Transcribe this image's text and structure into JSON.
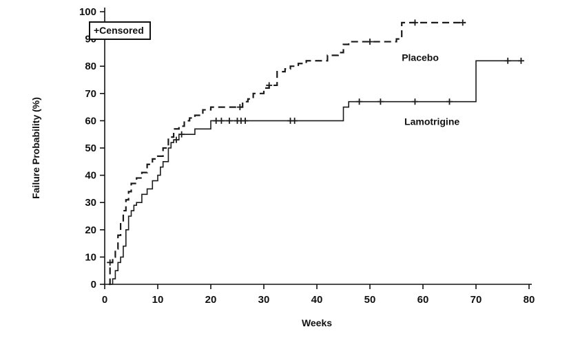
{
  "chart_data": {
    "type": "line",
    "subtype": "kaplan-meier-step",
    "title": "",
    "xlabel": "Weeks",
    "ylabel": "Failure Probability (%)",
    "xlim": [
      0,
      80
    ],
    "ylim": [
      0,
      100
    ],
    "x_ticks": [
      0,
      10,
      20,
      30,
      40,
      50,
      60,
      70,
      80
    ],
    "y_ticks": [
      0,
      10,
      20,
      30,
      40,
      50,
      60,
      70,
      80,
      90,
      100
    ],
    "grid": false,
    "legend": {
      "label": "+Censored",
      "position": "top-left"
    },
    "axis_color": "#111111",
    "series": [
      {
        "name": "Placebo",
        "style": "dashed",
        "color": "#1a1a1a",
        "label_pos": [
          56,
          82
        ],
        "points": [
          [
            0.8,
            0
          ],
          [
            1,
            8
          ],
          [
            1.5,
            10
          ],
          [
            2,
            13
          ],
          [
            2.5,
            18
          ],
          [
            3,
            23
          ],
          [
            3.5,
            27
          ],
          [
            4,
            31
          ],
          [
            4.5,
            34
          ],
          [
            5,
            37
          ],
          [
            6,
            39
          ],
          [
            7,
            41
          ],
          [
            8,
            44
          ],
          [
            9,
            46
          ],
          [
            10,
            47
          ],
          [
            11,
            50
          ],
          [
            12,
            54
          ],
          [
            13,
            57
          ],
          [
            14,
            58
          ],
          [
            15,
            60
          ],
          [
            16,
            61
          ],
          [
            17,
            62
          ],
          [
            18.5,
            64
          ],
          [
            20,
            65
          ],
          [
            26,
            67
          ],
          [
            27,
            68
          ],
          [
            28,
            70
          ],
          [
            30,
            72
          ],
          [
            31,
            73
          ],
          [
            32.5,
            78
          ],
          [
            34,
            79
          ],
          [
            35,
            80
          ],
          [
            36.5,
            81
          ],
          [
            38,
            82
          ],
          [
            42,
            84
          ],
          [
            44,
            85
          ],
          [
            45,
            88
          ],
          [
            46,
            89
          ],
          [
            55,
            90
          ],
          [
            56,
            96
          ],
          [
            68,
            96
          ]
        ],
        "censored": [
          [
            1,
            8
          ],
          [
            25.5,
            65
          ],
          [
            31,
            73
          ],
          [
            50,
            89
          ],
          [
            58.5,
            96
          ],
          [
            67.5,
            96
          ]
        ]
      },
      {
        "name": "Lamotrigine",
        "style": "solid",
        "color": "#1a1a1a",
        "label_pos": [
          56.5,
          58.5
        ],
        "points": [
          [
            1,
            0
          ],
          [
            1.5,
            2
          ],
          [
            2,
            5
          ],
          [
            2.5,
            8
          ],
          [
            3,
            10
          ],
          [
            3.5,
            14
          ],
          [
            4,
            20
          ],
          [
            4.5,
            25
          ],
          [
            5,
            27
          ],
          [
            5.5,
            29
          ],
          [
            6,
            30
          ],
          [
            7,
            33
          ],
          [
            8,
            35
          ],
          [
            9,
            38
          ],
          [
            10,
            40
          ],
          [
            10.5,
            43
          ],
          [
            11,
            45
          ],
          [
            12,
            50
          ],
          [
            12.5,
            52
          ],
          [
            13,
            53
          ],
          [
            14,
            55
          ],
          [
            17,
            57
          ],
          [
            20,
            60
          ],
          [
            45,
            65
          ],
          [
            46,
            67
          ],
          [
            70,
            82
          ],
          [
            78.5,
            82
          ]
        ],
        "censored": [
          [
            13.5,
            53
          ],
          [
            14.5,
            55
          ],
          [
            21,
            60
          ],
          [
            22,
            60
          ],
          [
            23.5,
            60
          ],
          [
            25,
            60
          ],
          [
            25.7,
            60
          ],
          [
            26.5,
            60
          ],
          [
            35,
            60
          ],
          [
            35.8,
            60
          ],
          [
            48,
            67
          ],
          [
            52,
            67
          ],
          [
            58.5,
            67
          ],
          [
            65,
            67
          ],
          [
            76,
            82
          ],
          [
            78.5,
            82
          ]
        ]
      }
    ]
  }
}
